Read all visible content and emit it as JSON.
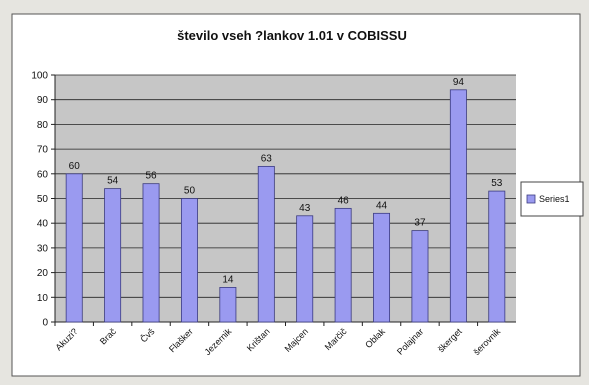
{
  "chart_data": {
    "type": "bar",
    "title": "število vseh ?lankov 1.01 v COBISSU",
    "categories": [
      "Akuzi?",
      "Brač",
      "Čvš",
      "Flašker",
      "Jezernik",
      "Krištan",
      "Majcen",
      "Marčič",
      "Oblak",
      "Polajnar",
      "škerget",
      "šerovnik"
    ],
    "series": [
      {
        "name": "Series1",
        "values": [
          60,
          54,
          56,
          50,
          14,
          63,
          43,
          46,
          44,
          37,
          94,
          53
        ]
      }
    ],
    "ylim": [
      0,
      100
    ],
    "yticks": [
      0,
      10,
      20,
      30,
      40,
      50,
      60,
      70,
      80,
      90,
      100
    ],
    "grid": true,
    "data_labels": true,
    "legend_position": "right",
    "colors": {
      "bar": "#9a9af0",
      "bar_edge": "#3b3b80",
      "plot_bg": "#c6c6c6",
      "chart_bg": "#ffffff",
      "page_bg": "#e6e5e0",
      "grid": "#222222"
    }
  }
}
